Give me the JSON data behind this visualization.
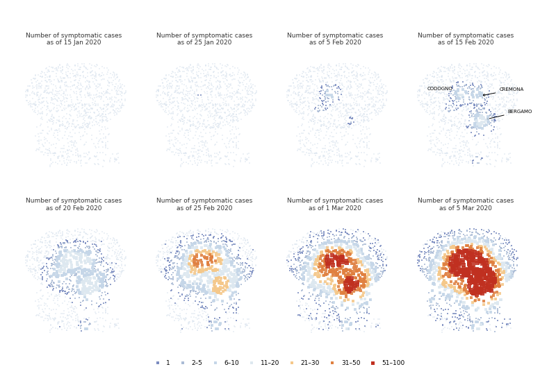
{
  "titles": [
    "Number of symptomatic cases\nas of 15 Jan 2020",
    "Number of symptomatic cases\nas of 25 Jan 2020",
    "Number of symptomatic cases\nas of 5 Feb 2020",
    "Number of symptomatic cases\nas of 15 Feb 2020",
    "Number of symptomatic cases\nas of 20 Feb 2020",
    "Number of symptomatic cases\nas of 25 Feb 2020",
    "Number of symptomatic cases\nas of 1 Mar 2020",
    "Number of symptomatic cases\nas of 5 Mar 2020"
  ],
  "legend_labels": [
    "1",
    "2–5",
    "6–10",
    "11–20",
    "21–30",
    "31–50",
    "51–100"
  ],
  "legend_colors": [
    "#7b8cc0",
    "#aabbd5",
    "#c5d6e8",
    "#dde8f0",
    "#f5c88a",
    "#e08040",
    "#c03020"
  ],
  "legend_sizes": [
    2,
    3,
    5,
    7,
    9,
    12,
    16
  ],
  "background_color": "#ffffff",
  "map_shadow_color": "#dde6ef",
  "title_fontsize": 6.5,
  "title_color": "#333333"
}
